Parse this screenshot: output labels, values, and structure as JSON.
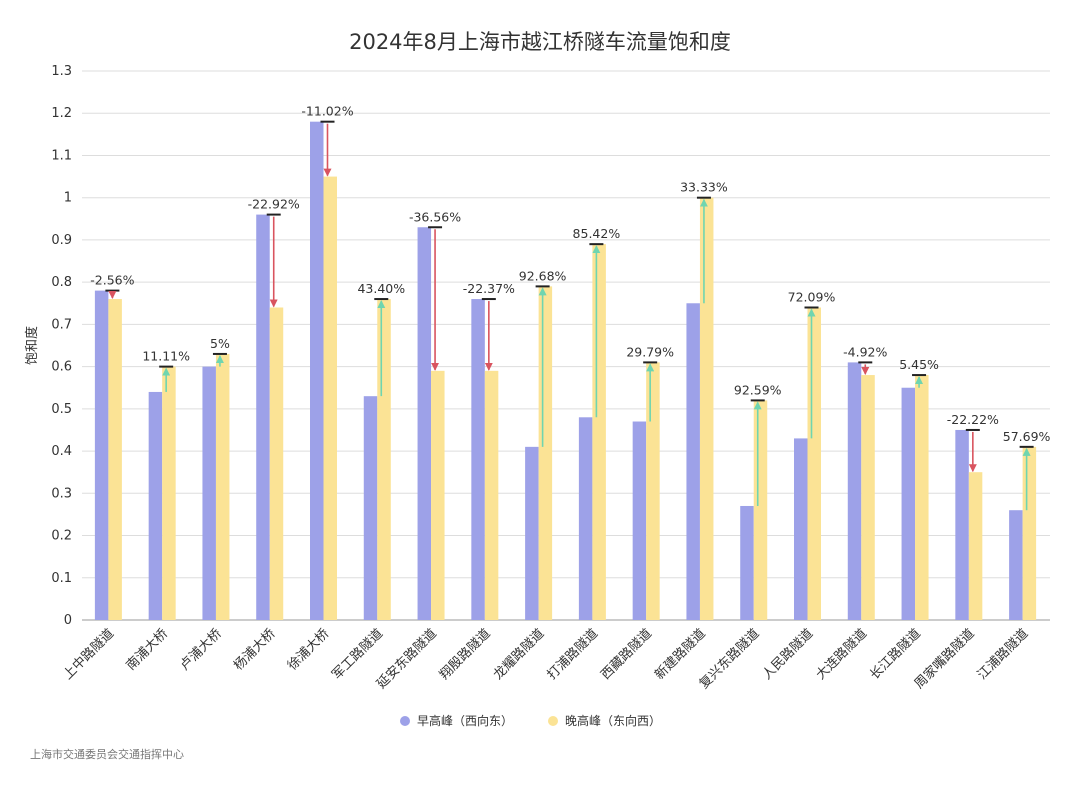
{
  "chart_data": {
    "type": "bar",
    "title": "2024年8月上海市越江桥隧车流量饱和度",
    "xlabel": "",
    "ylabel": "饱和度",
    "ylim": [
      0,
      1.3
    ],
    "yticks": [
      "0",
      "0.1",
      "0.2",
      "0.3",
      "0.4",
      "0.5",
      "0.6",
      "0.7",
      "0.8",
      "0.9",
      "1",
      "1.1",
      "1.2",
      "1.3"
    ],
    "grid": true,
    "legend_placement": "bottom",
    "categories": [
      "上中路隧道",
      "南浦大桥",
      "卢浦大桥",
      "杨浦大桥",
      "徐浦大桥",
      "军工路隧道",
      "延安东路隧道",
      "翔殷路隧道",
      "龙耀路隧道",
      "打浦路隧道",
      "西藏路隧道",
      "新建路隧道",
      "复兴东路隧道",
      "人民路隧道",
      "大连路隧道",
      "长江路隧道",
      "周家嘴路隧道",
      "江浦路隧道"
    ],
    "series": [
      {
        "name": "早高峰（西向东）",
        "color": "#9da1e8",
        "values": [
          0.78,
          0.54,
          0.6,
          0.96,
          1.18,
          0.53,
          0.93,
          0.76,
          0.41,
          0.48,
          0.47,
          0.75,
          0.27,
          0.43,
          0.61,
          0.55,
          0.45,
          0.26
        ]
      },
      {
        "name": "晚高峰（东向西）",
        "color": "#fbe395",
        "values": [
          0.76,
          0.6,
          0.63,
          0.74,
          1.05,
          0.76,
          0.59,
          0.59,
          0.79,
          0.89,
          0.61,
          1.0,
          0.52,
          0.74,
          0.58,
          0.58,
          0.35,
          0.41
        ]
      }
    ],
    "change_labels": [
      "-2.56%",
      "11.11%",
      "5%",
      "-22.92%",
      "-11.02%",
      "43.40%",
      "-36.56%",
      "-22.37%",
      "92.68%",
      "85.42%",
      "29.79%",
      "33.33%",
      "92.59%",
      "72.09%",
      "-4.92%",
      "5.45%",
      "-22.22%",
      "57.69%"
    ],
    "arrow_colors": {
      "up": "#6fd5b0",
      "down": "#d9545f"
    }
  },
  "source": "上海市交通委员会交通指挥中心"
}
